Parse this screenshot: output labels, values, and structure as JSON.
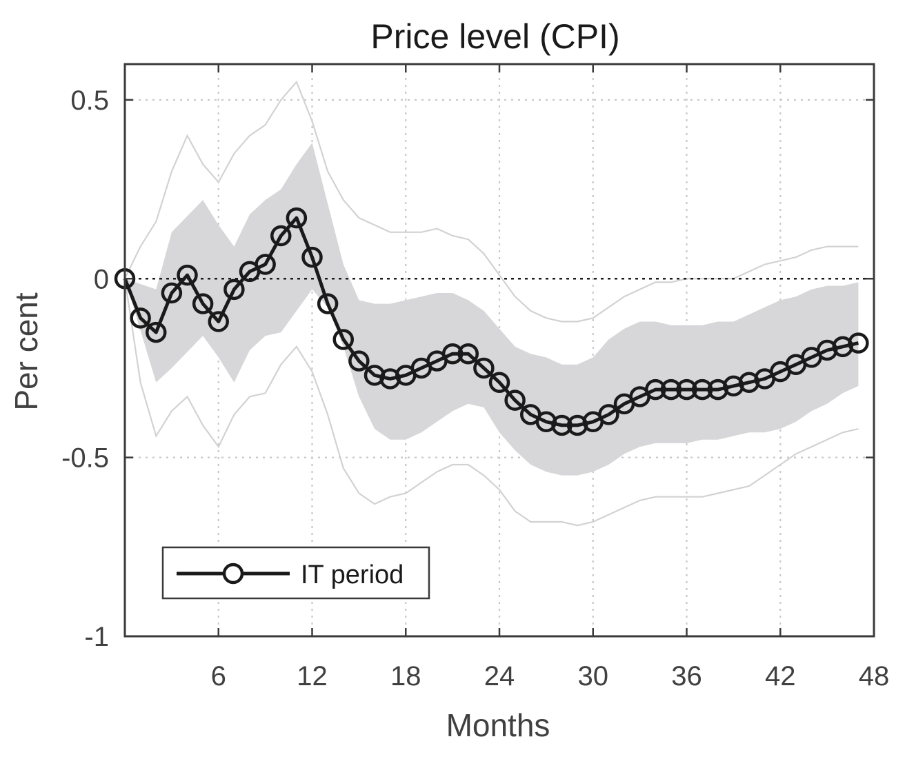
{
  "chart_data": {
    "type": "line",
    "title": "Price level (CPI)",
    "xlabel": "Months",
    "ylabel": "Per cent",
    "xlim": [
      0,
      48
    ],
    "ylim": [
      -1,
      0.6
    ],
    "x_ticks": [
      6,
      12,
      18,
      24,
      30,
      36,
      42,
      48
    ],
    "y_ticks": [
      0.5,
      0,
      -0.5,
      -1
    ],
    "y_tick_labels": [
      "0.5",
      "0",
      "-0.5",
      "-1"
    ],
    "grid": true,
    "legend_position": "lower-left",
    "zero_line": 0,
    "colors": {
      "line": "#1a1a1a",
      "band_inner": "#d7d7d9",
      "band_outer": "#d2d2d2",
      "axes": "#3a3a3a",
      "grid": "#c8c8c8"
    },
    "series": [
      {
        "name": "IT period",
        "marker": "circle",
        "x": [
          0,
          1,
          2,
          3,
          4,
          5,
          6,
          7,
          8,
          9,
          10,
          11,
          12,
          13,
          14,
          15,
          16,
          17,
          18,
          19,
          20,
          21,
          22,
          23,
          24,
          25,
          26,
          27,
          28,
          29,
          30,
          31,
          32,
          33,
          34,
          35,
          36,
          37,
          38,
          39,
          40,
          41,
          42,
          43,
          44,
          45,
          46,
          47
        ],
        "values": [
          0.0,
          -0.11,
          -0.15,
          -0.04,
          0.01,
          -0.07,
          -0.12,
          -0.03,
          0.02,
          0.04,
          0.12,
          0.17,
          0.06,
          -0.07,
          -0.17,
          -0.23,
          -0.27,
          -0.28,
          -0.27,
          -0.25,
          -0.23,
          -0.21,
          -0.21,
          -0.25,
          -0.29,
          -0.34,
          -0.38,
          -0.4,
          -0.41,
          -0.41,
          -0.4,
          -0.38,
          -0.35,
          -0.33,
          -0.31,
          -0.31,
          -0.31,
          -0.31,
          -0.31,
          -0.3,
          -0.29,
          -0.28,
          -0.26,
          -0.24,
          -0.22,
          -0.2,
          -0.19,
          -0.18
        ]
      }
    ],
    "inner_band": {
      "x": [
        0,
        2,
        3,
        5,
        6,
        7,
        8,
        9,
        10,
        11,
        12,
        13,
        14,
        15,
        16,
        17,
        18,
        19,
        20,
        21,
        22,
        23,
        24,
        25,
        26,
        27,
        28,
        29,
        30,
        31,
        32,
        33,
        34,
        35,
        36,
        37,
        38,
        39,
        40,
        41,
        42,
        43,
        44,
        45,
        46,
        47
      ],
      "upper": [
        0,
        -0.03,
        0.13,
        0.22,
        0.15,
        0.09,
        0.18,
        0.22,
        0.25,
        0.32,
        0.38,
        0.21,
        0.04,
        -0.06,
        -0.07,
        -0.07,
        -0.06,
        -0.05,
        -0.04,
        -0.04,
        -0.06,
        -0.09,
        -0.14,
        -0.19,
        -0.21,
        -0.22,
        -0.24,
        -0.24,
        -0.22,
        -0.17,
        -0.14,
        -0.12,
        -0.12,
        -0.13,
        -0.13,
        -0.13,
        -0.12,
        -0.12,
        -0.1,
        -0.08,
        -0.06,
        -0.05,
        -0.03,
        -0.02,
        -0.02,
        -0.01
      ],
      "lower": [
        0,
        -0.29,
        -0.25,
        -0.16,
        -0.22,
        -0.29,
        -0.2,
        -0.16,
        -0.15,
        -0.09,
        -0.03,
        -0.08,
        -0.19,
        -0.33,
        -0.42,
        -0.45,
        -0.45,
        -0.43,
        -0.4,
        -0.37,
        -0.35,
        -0.36,
        -0.43,
        -0.48,
        -0.52,
        -0.54,
        -0.55,
        -0.55,
        -0.54,
        -0.52,
        -0.49,
        -0.47,
        -0.46,
        -0.46,
        -0.46,
        -0.45,
        -0.45,
        -0.44,
        -0.43,
        -0.43,
        -0.42,
        -0.4,
        -0.37,
        -0.35,
        -0.32,
        -0.3
      ]
    },
    "outer_band": {
      "x": [
        0,
        1,
        2,
        3,
        4,
        5,
        6,
        7,
        8,
        9,
        10,
        11,
        12,
        13,
        14,
        15,
        16,
        17,
        18,
        19,
        20,
        21,
        22,
        23,
        24,
        25,
        26,
        27,
        28,
        29,
        30,
        31,
        32,
        33,
        34,
        35,
        36,
        37,
        38,
        39,
        40,
        41,
        42,
        43,
        44,
        45,
        46,
        47
      ],
      "upper": [
        0,
        0.09,
        0.16,
        0.3,
        0.4,
        0.32,
        0.27,
        0.35,
        0.4,
        0.43,
        0.5,
        0.55,
        0.44,
        0.3,
        0.22,
        0.17,
        0.15,
        0.13,
        0.13,
        0.13,
        0.14,
        0.12,
        0.11,
        0.07,
        0.01,
        -0.05,
        -0.09,
        -0.11,
        -0.12,
        -0.12,
        -0.11,
        -0.08,
        -0.05,
        -0.03,
        -0.01,
        -0.01,
        0,
        0,
        0,
        0,
        0.02,
        0.04,
        0.05,
        0.06,
        0.08,
        0.09,
        0.09,
        0.09
      ],
      "lower": [
        0,
        -0.29,
        -0.44,
        -0.37,
        -0.33,
        -0.41,
        -0.47,
        -0.38,
        -0.33,
        -0.32,
        -0.24,
        -0.19,
        -0.26,
        -0.38,
        -0.53,
        -0.6,
        -0.63,
        -0.61,
        -0.6,
        -0.57,
        -0.54,
        -0.52,
        -0.52,
        -0.55,
        -0.59,
        -0.65,
        -0.68,
        -0.68,
        -0.68,
        -0.69,
        -0.68,
        -0.66,
        -0.64,
        -0.62,
        -0.61,
        -0.61,
        -0.61,
        -0.61,
        -0.6,
        -0.59,
        -0.58,
        -0.55,
        -0.52,
        -0.49,
        -0.47,
        -0.45,
        -0.43,
        -0.42
      ]
    }
  }
}
